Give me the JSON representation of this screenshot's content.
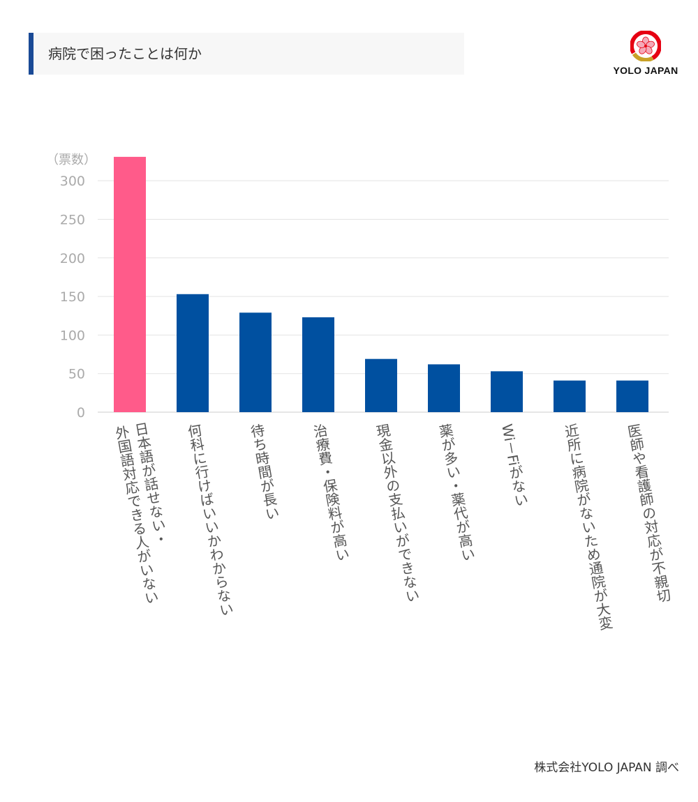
{
  "header": {
    "title": "病院で困ったことは何か"
  },
  "logo": {
    "brand": "YOLO JAPAN",
    "icon": "sakura-logo-icon",
    "colors": {
      "red": "#e60012",
      "gold": "#c9a227",
      "pink": "#f4a9b8"
    }
  },
  "source": "株式会社YOLO JAPAN 調べ",
  "chart_data": {
    "type": "bar",
    "unit_label": "（票数）",
    "ylim": [
      0,
      330
    ],
    "yticks": [
      0,
      50,
      100,
      150,
      200,
      250,
      300
    ],
    "grid": true,
    "colors": {
      "highlight": "#ff5b8a",
      "default": "#0050a0"
    },
    "categories": [
      "日本語が話せない・\n外国語対応できる人がいない",
      "何科に行けばいいかわからない",
      "待ち時間が長い",
      "治療費・保険料が高い",
      "現金以外の支払いができない",
      "薬が多い・薬代が高い",
      "Wi－Fiがない",
      "近所に病院がないため通院が大変",
      "医師や看護師の対応が不親切"
    ],
    "values": [
      331,
      153,
      129,
      123,
      69,
      62,
      53,
      41,
      41
    ],
    "highlight_index": 0
  }
}
